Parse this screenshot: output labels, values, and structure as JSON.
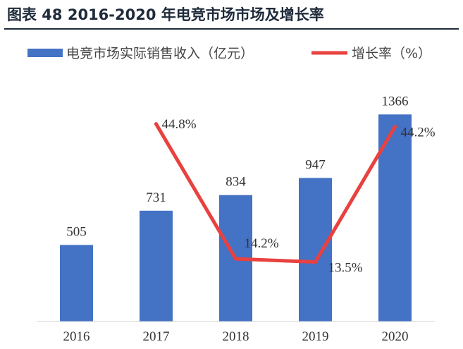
{
  "figure": {
    "title": "图表 48 2016-2020 年电竞市场市场及增长率"
  },
  "chart_data": {
    "type": "bar",
    "categories": [
      "2016",
      "2017",
      "2018",
      "2019",
      "2020"
    ],
    "series": [
      {
        "name": "电竞市场实际销售收入（亿元）",
        "type": "bar",
        "axis": "left",
        "color": "#4472C4",
        "values": [
          505,
          731,
          834,
          947,
          1366
        ]
      },
      {
        "name": "增长率（%）",
        "type": "line",
        "axis": "right",
        "color": "#E8413F",
        "values": [
          null,
          44.8,
          14.2,
          13.5,
          44.2
        ],
        "labels": [
          "",
          "44.8%",
          "14.2%",
          "13.5%",
          "44.2%"
        ]
      }
    ],
    "bar_labels": [
      "505",
      "731",
      "834",
      "947",
      "1366"
    ],
    "ylim": [
      0,
      1600
    ],
    "y2lim": [
      0,
      55
    ],
    "grid": false,
    "legend": "top"
  }
}
